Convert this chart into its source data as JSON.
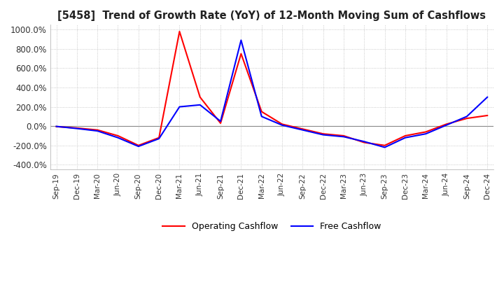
{
  "title": "[5458]  Trend of Growth Rate (YoY) of 12-Month Moving Sum of Cashflows",
  "ylim": [
    -450,
    1050
  ],
  "yticks": [
    -400,
    -200,
    0,
    200,
    400,
    600,
    800,
    1000
  ],
  "yticklabels": [
    "-400.0%",
    "-200.0%",
    "0.0%",
    "200.0%",
    "400.0%",
    "600.0%",
    "800.0%",
    "1000.0%"
  ],
  "background_color": "#ffffff",
  "grid_color": "#bbbbbb",
  "operating_color": "#ff0000",
  "free_color": "#0000ff",
  "x_labels": [
    "Sep-19",
    "Dec-19",
    "Mar-20",
    "Jun-20",
    "Sep-20",
    "Dec-20",
    "Mar-21",
    "Jun-21",
    "Sep-21",
    "Dec-21",
    "Mar-22",
    "Jun-22",
    "Sep-22",
    "Dec-22",
    "Mar-23",
    "Jun-23",
    "Sep-23",
    "Dec-23",
    "Mar-24",
    "Jun-24",
    "Sep-24",
    "Dec-24"
  ],
  "operating_cashflow": [
    -5,
    -20,
    -40,
    -100,
    -200,
    -120,
    980,
    300,
    30,
    750,
    150,
    20,
    -30,
    -80,
    -100,
    -170,
    -200,
    -100,
    -60,
    20,
    80,
    110
  ],
  "free_cashflow": [
    -3,
    -25,
    -50,
    -120,
    -210,
    -130,
    200,
    220,
    50,
    890,
    100,
    10,
    -40,
    -90,
    -110,
    -160,
    -220,
    -120,
    -80,
    10,
    100,
    300
  ]
}
